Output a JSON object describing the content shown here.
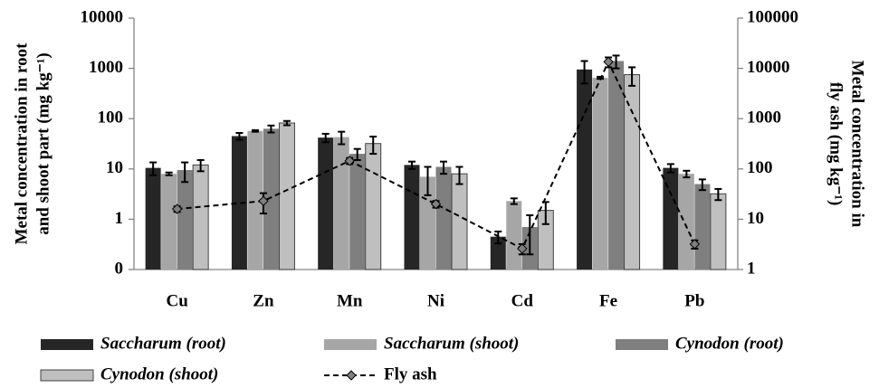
{
  "chart_data": {
    "type": "bar",
    "categories": [
      "Cu",
      "Zn",
      "Mn",
      "Ni",
      "Cd",
      "Fe",
      "Pb"
    ],
    "series": [
      {
        "name": "Saccharum (root)",
        "color": "#262626",
        "values": [
          10.5,
          45,
          42,
          12,
          0.45,
          950,
          10.5
        ],
        "errors": [
          3,
          7,
          8,
          2,
          0.12,
          450,
          2
        ]
      },
      {
        "name": "Saccharum (shoot)",
        "color": "#a6a6a6",
        "values": [
          8,
          57,
          43,
          7,
          2.3,
          650,
          8
        ],
        "errors": [
          0.5,
          2,
          12,
          4,
          0.3,
          30,
          1.2
        ]
      },
      {
        "name": "Cynodon (root)",
        "color": "#7f7f7f",
        "values": [
          9.5,
          63,
          20,
          11,
          0.7,
          1400,
          5
        ],
        "errors": [
          4,
          10,
          5,
          3,
          0.5,
          400,
          1.2
        ]
      },
      {
        "name": "Cynodon (shoot)",
        "color": "#bfbfbf",
        "values": [
          12,
          82,
          32,
          8,
          1.5,
          750,
          3.2
        ],
        "errors": [
          3,
          8,
          12,
          3,
          0.7,
          300,
          0.8
        ]
      },
      {
        "name": "Fly ash",
        "color": "#000000",
        "type": "line",
        "axis": "y2",
        "values": [
          16,
          23,
          145,
          20,
          2.6,
          13500,
          3.2
        ],
        "errors": [
          2,
          10,
          20,
          3,
          0.6,
          3000,
          0.6
        ]
      }
    ],
    "ylabel": [
      "Metal concentration in root",
      "and shoot part (mg kg⁻¹)"
    ],
    "y2label": [
      "Metal concentration in",
      "fly ash (mg kg⁻¹)"
    ],
    "log_scale": true,
    "ylim": [
      0.1,
      10000
    ],
    "yticks": [
      {
        "value": 0.1,
        "label": "0"
      },
      1,
      10,
      100,
      1000,
      10000
    ],
    "y2lim": [
      1,
      100000
    ],
    "y2ticks": [
      1,
      10,
      100,
      1000,
      10000,
      100000
    ],
    "legend": "bottom"
  }
}
